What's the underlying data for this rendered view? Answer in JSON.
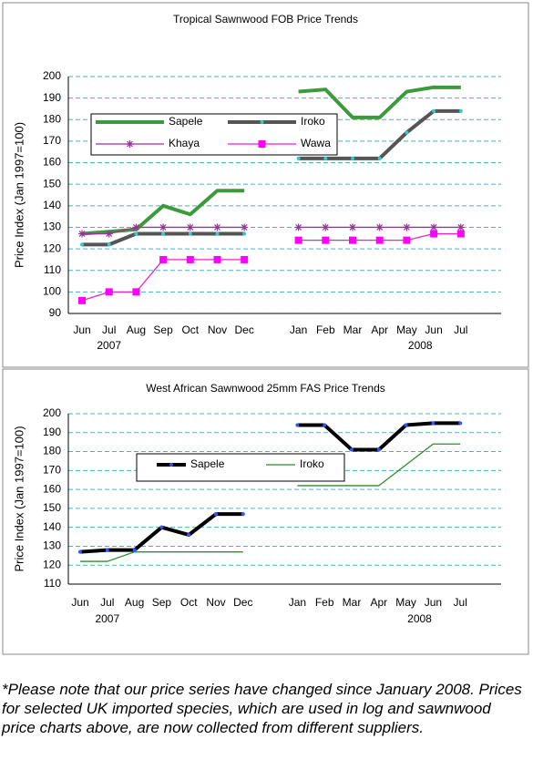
{
  "chart_data": [
    {
      "type": "line",
      "title": "Tropical Sawnwood FOB Price Trends",
      "y_label": "Price Index (Jan 1997=100)",
      "categories": [
        "Jun",
        "Jul",
        "Aug",
        "Sep",
        "Oct",
        "Nov",
        "Dec",
        null,
        "Jan",
        "Feb",
        "Mar",
        "Apr",
        "May",
        "Jun",
        "Jul"
      ],
      "annotations": [
        "2007",
        "2008"
      ],
      "ylim": [
        90,
        200
      ],
      "yticks": [
        90,
        100,
        110,
        120,
        130,
        140,
        150,
        160,
        170,
        180,
        190,
        200
      ],
      "grid": true,
      "series": [
        {
          "name": "Sapele",
          "color": "#3c9a3c",
          "style": "thick",
          "marker": null,
          "values": [
            127,
            128,
            129,
            140,
            136,
            147,
            147,
            null,
            193,
            194,
            181,
            181,
            193,
            195,
            195
          ]
        },
        {
          "name": "Iroko",
          "color": "#555555",
          "style": "thick",
          "marker": "dot",
          "marker_color": "#33cccc",
          "values": [
            122,
            122,
            127,
            127,
            127,
            127,
            127,
            null,
            162,
            162,
            162,
            162,
            174,
            184,
            184
          ]
        },
        {
          "name": "Khaya",
          "color": "#993399",
          "style": "thin",
          "marker": "star",
          "marker_color": "#993399",
          "values": [
            127,
            127,
            130,
            130,
            130,
            130,
            130,
            null,
            130,
            130,
            130,
            130,
            130,
            130,
            130
          ]
        },
        {
          "name": "Wawa",
          "color": "#ee22cc",
          "style": "thin",
          "marker": "square",
          "marker_color": "#ff00ff",
          "values": [
            96,
            100,
            100,
            115,
            115,
            115,
            115,
            null,
            124,
            124,
            124,
            124,
            124,
            127,
            127
          ]
        }
      ]
    },
    {
      "type": "line",
      "title": "West African Sawnwood 25mm FAS Price Trends",
      "y_label": "Price Index (Jan 1997=100)",
      "categories": [
        "Jun",
        "Jul",
        "Aug",
        "Sep",
        "Oct",
        "Nov",
        "Dec",
        null,
        "Jan",
        "Feb",
        "Mar",
        "Apr",
        "May",
        "Jun",
        "Jul"
      ],
      "annotations": [
        "2007",
        "2008"
      ],
      "ylim": [
        110,
        200
      ],
      "yticks": [
        110,
        120,
        130,
        140,
        150,
        160,
        170,
        180,
        190,
        200
      ],
      "grid": true,
      "series": [
        {
          "name": "Sapele",
          "color": "#000000",
          "style": "thick",
          "marker": "dot",
          "marker_color": "#3355ff",
          "values": [
            127,
            128,
            128,
            140,
            136,
            147,
            147,
            null,
            194,
            194,
            181,
            181,
            194,
            195,
            195
          ]
        },
        {
          "name": "Iroko",
          "color": "#2e8b2e",
          "style": "thin",
          "marker": null,
          "values": [
            122,
            122,
            127,
            127,
            127,
            127,
            127,
            null,
            162,
            162,
            162,
            162,
            173,
            184,
            184
          ]
        }
      ]
    }
  ],
  "note": "*Please note that our price series have changed since January 2008. Prices for selected UK imported species, which are used in log and sawnwood price charts above, are now collected from different suppliers."
}
